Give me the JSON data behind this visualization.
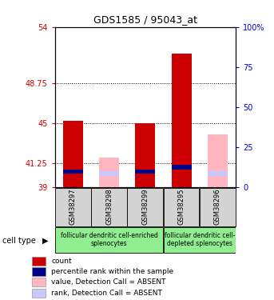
{
  "title": "GDS1585 / 95043_at",
  "samples": [
    "GSM38297",
    "GSM38298",
    "GSM38299",
    "GSM38295",
    "GSM38296"
  ],
  "ylim_left": [
    39,
    54
  ],
  "ylim_right": [
    0,
    100
  ],
  "yticks_left": [
    39,
    41.25,
    45,
    48.75,
    54
  ],
  "yticks_right": [
    0,
    25,
    50,
    75,
    100
  ],
  "ytick_labels_left": [
    "39",
    "41.25",
    "45",
    "48.75",
    "54"
  ],
  "ytick_labels_right": [
    "0",
    "25",
    "50",
    "75",
    "100%"
  ],
  "red_bars": [
    45.2,
    0,
    45.0,
    51.5,
    0
  ],
  "pink_bars": [
    0,
    41.8,
    0,
    0,
    44.0
  ],
  "blue_bars": [
    40.5,
    0,
    40.5,
    40.9,
    0
  ],
  "lavender_bars": [
    0,
    40.3,
    0,
    0,
    40.3
  ],
  "group1_label": "follicular dendritic cell-enriched\nsplenocytes",
  "group2_label": "follicular dendritic cell-\ndepleted splenocytes",
  "cell_type_label": "cell type",
  "legend_items": [
    {
      "label": "count",
      "color": "#cc0000"
    },
    {
      "label": "percentile rank within the sample",
      "color": "#00008B"
    },
    {
      "label": "value, Detection Call = ABSENT",
      "color": "#FFB6C1"
    },
    {
      "label": "rank, Detection Call = ABSENT",
      "color": "#C8C8FF"
    }
  ],
  "left_tick_color": "#cc0000",
  "right_tick_color": "#0000cc",
  "sample_box_color": "#d3d3d3",
  "green_color": "#90EE90"
}
